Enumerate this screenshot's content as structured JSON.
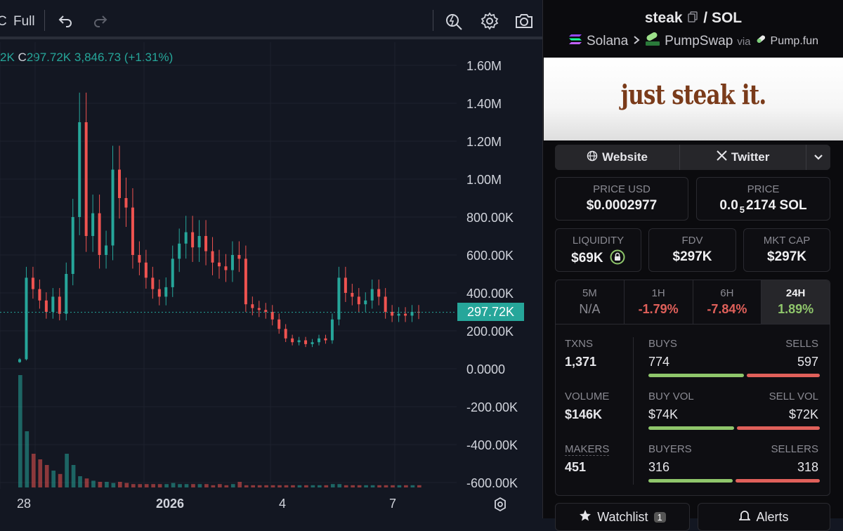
{
  "toolbar": {
    "partial_label": "C",
    "full_label": "Full"
  },
  "ohlc": {
    "partial_value": "2K",
    "close_label": "C",
    "close_value": "297.72K",
    "change": "3,846.73 (+1.31%)"
  },
  "price_axis": {
    "ticks": [
      "1.60M",
      "1.40M",
      "1.20M",
      "1.00M",
      "800.00K",
      "600.00K",
      "400.00K",
      "200.00K",
      "0.0000",
      "-200.00K",
      "-400.00K",
      "-600.00K"
    ],
    "current_price": "297.72K"
  },
  "time_axis": {
    "ticks": [
      "28",
      "2026",
      "4",
      "7"
    ]
  },
  "chart_data": {
    "type": "candlestick",
    "ylim": [
      -600000,
      1600000
    ],
    "last_close": 297720,
    "closes": [
      50000,
      480000,
      420000,
      360000,
      300000,
      380000,
      290000,
      500000,
      800000,
      1300000,
      700000,
      820000,
      600000,
      650000,
      1050000,
      900000,
      850000,
      600000,
      560000,
      480000,
      420000,
      380000,
      430000,
      580000,
      660000,
      720000,
      640000,
      700000,
      620000,
      560000,
      540000,
      520000,
      600000,
      580000,
      340000,
      320000,
      310000,
      300000,
      260000,
      210000,
      160000,
      140000,
      150000,
      130000,
      140000,
      160000,
      150000,
      260000,
      480000,
      400000,
      380000,
      340000,
      360000,
      420000,
      380000,
      300000,
      280000,
      290000,
      280000,
      300000,
      297720
    ],
    "volumes": [
      1.0,
      0.5,
      0.3,
      0.25,
      0.2,
      0.15,
      0.12,
      0.3,
      0.2,
      0.1,
      0.08,
      0.06,
      0.05,
      0.05,
      0.04,
      0.05,
      0.04,
      0.03,
      0.03,
      0.03,
      0.03,
      0.03,
      0.03,
      0.04,
      0.03,
      0.03,
      0.03,
      0.03,
      0.03,
      0.02,
      0.03,
      0.02,
      0.03,
      0.05,
      0.02,
      0.02,
      0.02,
      0.02,
      0.02,
      0.02,
      0.02,
      0.02,
      0.02,
      0.02,
      0.02,
      0.02,
      0.02,
      0.03,
      0.03,
      0.02,
      0.02,
      0.02,
      0.02,
      0.02,
      0.02,
      0.02,
      0.02,
      0.02,
      0.02,
      0.02,
      0.02
    ]
  },
  "pair": {
    "base": "steak",
    "sep": "/",
    "quote": "SOL",
    "chain": "Solana",
    "dex": "PumpSwap",
    "via": "via",
    "launchpad": "Pump.fun"
  },
  "banner": {
    "slogan": "just steak it."
  },
  "links": {
    "website": "Website",
    "twitter": "Twitter"
  },
  "price": {
    "usd_label": "PRICE USD",
    "usd_value": "$0.0002977",
    "sol_label": "PRICE",
    "sol_prefix": "0.0",
    "sol_sub": "5",
    "sol_suffix": "2174 SOL"
  },
  "metrics": {
    "liquidity_label": "LIQUIDITY",
    "liquidity_value": "$69K",
    "fdv_label": "FDV",
    "fdv_value": "$297K",
    "mcap_label": "MKT CAP",
    "mcap_value": "$297K"
  },
  "timeframes": [
    {
      "name": "5M",
      "pct": "N/A",
      "color": "#8a8a92"
    },
    {
      "name": "1H",
      "pct": "-1.79%",
      "color": "#e0605a"
    },
    {
      "name": "6H",
      "pct": "-7.84%",
      "color": "#e0605a"
    },
    {
      "name": "24H",
      "pct": "1.89%",
      "color": "#8fc66b"
    }
  ],
  "stats": {
    "txns_label": "TXNS",
    "txns_value": "1,371",
    "buys_label": "BUYS",
    "buys_value": "774",
    "buys_share": 0.565,
    "sells_label": "SELLS",
    "sells_value": "597",
    "volume_label": "VOLUME",
    "volume_value": "$146K",
    "buyvol_label": "BUY VOL",
    "buyvol_value": "$74K",
    "buyvol_share": 0.507,
    "sellvol_label": "SELL VOL",
    "sellvol_value": "$72K",
    "makers_label": "MAKERS",
    "makers_value": "451",
    "buyers_label": "BUYERS",
    "buyers_value": "316",
    "buyers_share": 0.498,
    "sellers_label": "SELLERS",
    "sellers_value": "318"
  },
  "bottom": {
    "watchlist": "Watchlist",
    "watch_count": "1",
    "alerts": "Alerts"
  },
  "colors": {
    "up": "#26a69a",
    "down": "#ef5350",
    "buy": "#8fc66b",
    "sell": "#e0605a"
  }
}
